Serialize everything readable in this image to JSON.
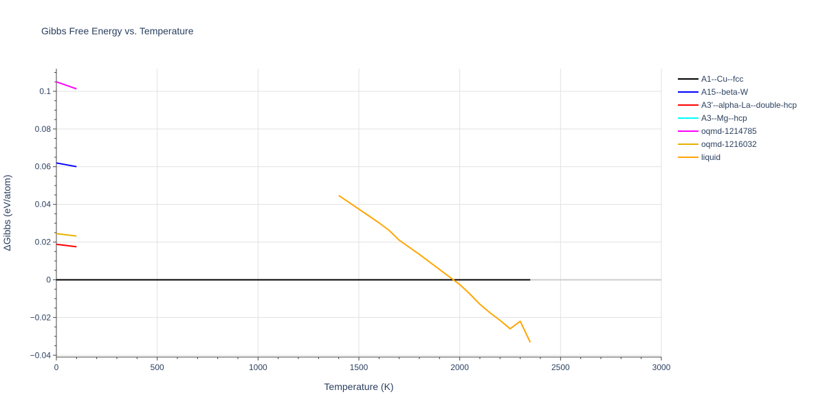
{
  "chart_data": {
    "type": "line",
    "title": "Gibbs Free Energy vs. Temperature",
    "xlabel": "Temperature (K)",
    "ylabel": "ΔGibbs (eV/atom)",
    "xlim": [
      0,
      3000
    ],
    "ylim": [
      -0.041,
      0.112
    ],
    "x_ticks": [
      0,
      500,
      1000,
      1500,
      2000,
      2500,
      3000
    ],
    "x_tick_labels": [
      "0",
      "500",
      "1000",
      "1500",
      "2000",
      "2500",
      "3000"
    ],
    "y_ticks": [
      -0.04,
      -0.02,
      0,
      0.02,
      0.04,
      0.06,
      0.08,
      0.1
    ],
    "y_tick_labels": [
      "−0.04",
      "−0.02",
      "0",
      "0.02",
      "0.04",
      "0.06",
      "0.08",
      "0.1"
    ],
    "grid": true,
    "legend_position": "right",
    "series": [
      {
        "name": "A1--Cu--fcc",
        "color": "#000000",
        "x": [
          0,
          2350
        ],
        "y": [
          0,
          0
        ]
      },
      {
        "name": "A15--beta-W",
        "color": "#0000ff",
        "x": [
          0,
          100
        ],
        "y": [
          0.062,
          0.06
        ]
      },
      {
        "name": "A3'--alpha-La--double-hcp",
        "color": "#ff0000",
        "x": [
          0,
          100
        ],
        "y": [
          0.0188,
          0.0175
        ]
      },
      {
        "name": "A3--Mg--hcp",
        "color": "#00ffff",
        "x": [],
        "y": []
      },
      {
        "name": "oqmd-1214785",
        "color": "#ff00ff",
        "x": [
          0,
          100
        ],
        "y": [
          0.105,
          0.1013
        ]
      },
      {
        "name": "oqmd-1216032",
        "color": "#e6b000",
        "x": [
          0,
          100
        ],
        "y": [
          0.0245,
          0.0232
        ]
      },
      {
        "name": "liquid",
        "color": "#ffa500",
        "x": [
          1400,
          1500,
          1600,
          1650,
          1700,
          1800,
          1900,
          2000,
          2050,
          2100,
          2150,
          2200,
          2250,
          2300,
          2350
        ],
        "y": [
          0.0447,
          0.0375,
          0.0302,
          0.0262,
          0.021,
          0.0135,
          0.0055,
          -0.0025,
          -0.0075,
          -0.013,
          -0.0175,
          -0.0215,
          -0.026,
          -0.022,
          -0.0332
        ]
      }
    ]
  }
}
